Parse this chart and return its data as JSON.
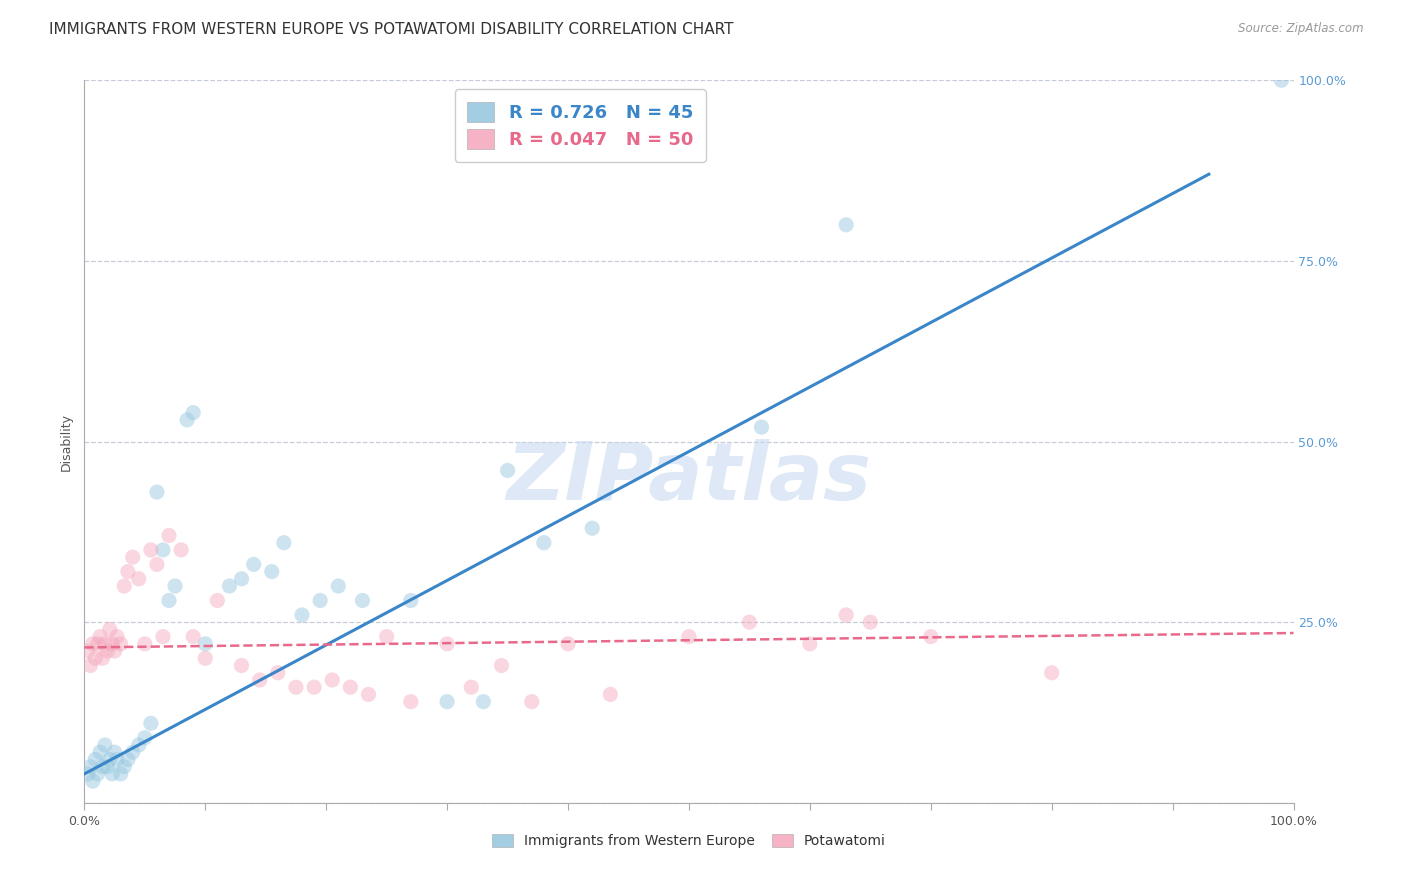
{
  "title": "IMMIGRANTS FROM WESTERN EUROPE VS POTAWATOMI DISABILITY CORRELATION CHART",
  "source": "Source: ZipAtlas.com",
  "ylabel": "Disability",
  "xlim": [
    0,
    1
  ],
  "ylim": [
    0,
    1
  ],
  "xticks": [
    0.0,
    0.1,
    0.2,
    0.3,
    0.4,
    0.5,
    0.6,
    0.7,
    0.8,
    0.9,
    1.0
  ],
  "yticks": [
    0.0,
    0.25,
    0.5,
    0.75,
    1.0
  ],
  "blue_color": "#92c5de",
  "pink_color": "#f4a6bb",
  "blue_line_color": "#3a86c8",
  "pink_line_color": "#e8698a",
  "legend_blue_label": "R = 0.726   N = 45",
  "legend_pink_label": "R = 0.047   N = 50",
  "legend_label_blue": "Immigrants from Western Europe",
  "legend_label_pink": "Potawatomi",
  "watermark": "ZIPatlas",
  "blue_scatter_x": [
    0.003,
    0.005,
    0.007,
    0.009,
    0.011,
    0.013,
    0.015,
    0.017,
    0.019,
    0.021,
    0.023,
    0.025,
    0.027,
    0.03,
    0.033,
    0.036,
    0.04,
    0.045,
    0.05,
    0.055,
    0.06,
    0.065,
    0.07,
    0.075,
    0.085,
    0.09,
    0.1,
    0.12,
    0.13,
    0.14,
    0.155,
    0.165,
    0.18,
    0.195,
    0.21,
    0.23,
    0.27,
    0.3,
    0.33,
    0.35,
    0.38,
    0.42,
    0.56,
    0.63,
    0.99
  ],
  "blue_scatter_y": [
    0.04,
    0.05,
    0.03,
    0.06,
    0.04,
    0.07,
    0.05,
    0.08,
    0.05,
    0.06,
    0.04,
    0.07,
    0.06,
    0.04,
    0.05,
    0.06,
    0.07,
    0.08,
    0.09,
    0.11,
    0.43,
    0.35,
    0.28,
    0.3,
    0.53,
    0.54,
    0.22,
    0.3,
    0.31,
    0.33,
    0.32,
    0.36,
    0.26,
    0.28,
    0.3,
    0.28,
    0.28,
    0.14,
    0.14,
    0.46,
    0.36,
    0.38,
    0.52,
    0.8,
    1.0
  ],
  "pink_scatter_x": [
    0.003,
    0.005,
    0.007,
    0.009,
    0.011,
    0.013,
    0.015,
    0.017,
    0.019,
    0.021,
    0.023,
    0.025,
    0.027,
    0.03,
    0.033,
    0.036,
    0.04,
    0.045,
    0.05,
    0.055,
    0.06,
    0.065,
    0.07,
    0.08,
    0.09,
    0.1,
    0.11,
    0.13,
    0.145,
    0.16,
    0.175,
    0.19,
    0.205,
    0.22,
    0.235,
    0.25,
    0.27,
    0.3,
    0.32,
    0.345,
    0.37,
    0.4,
    0.435,
    0.5,
    0.55,
    0.6,
    0.63,
    0.65,
    0.7,
    0.8
  ],
  "pink_scatter_y": [
    0.21,
    0.19,
    0.22,
    0.2,
    0.22,
    0.23,
    0.2,
    0.22,
    0.21,
    0.24,
    0.22,
    0.21,
    0.23,
    0.22,
    0.3,
    0.32,
    0.34,
    0.31,
    0.22,
    0.35,
    0.33,
    0.23,
    0.37,
    0.35,
    0.23,
    0.2,
    0.28,
    0.19,
    0.17,
    0.18,
    0.16,
    0.16,
    0.17,
    0.16,
    0.15,
    0.23,
    0.14,
    0.22,
    0.16,
    0.19,
    0.14,
    0.22,
    0.15,
    0.23,
    0.25,
    0.22,
    0.26,
    0.25,
    0.23,
    0.18
  ],
  "blue_trend_x": [
    0.0,
    0.93
  ],
  "blue_trend_y": [
    0.04,
    0.87
  ],
  "pink_trend_x": [
    0.0,
    1.0
  ],
  "pink_trend_y": [
    0.215,
    0.235
  ],
  "title_fontsize": 11,
  "axis_label_fontsize": 9,
  "tick_fontsize": 9,
  "scatter_size": 120,
  "scatter_alpha": 0.45,
  "background_color": "#ffffff",
  "grid_color": "#b0b8c8",
  "grid_alpha": 0.7,
  "right_axis_color": "#5b9bd5"
}
